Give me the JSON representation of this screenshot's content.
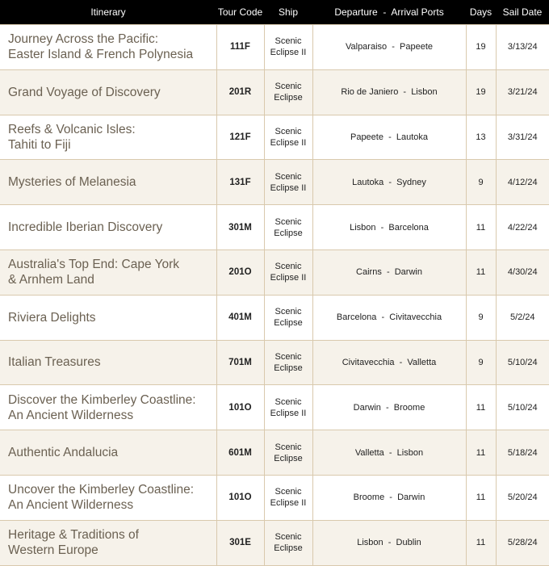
{
  "headers": [
    "Itinerary",
    "Tour Code",
    "Ship",
    "Departure  -  Arrival Ports",
    "Days",
    "Sail Date"
  ],
  "rows": [
    {
      "itinerary": [
        "Journey Across the Pacific:",
        "Easter Island & French Polynesia"
      ],
      "code": "111F",
      "ship": [
        "Scenic",
        "Eclipse II"
      ],
      "ports": "Valparaiso  -  Papeete",
      "days": "19",
      "date": "3/13/24"
    },
    {
      "itinerary": [
        "Grand Voyage of Discovery"
      ],
      "code": "201R",
      "ship": [
        "Scenic",
        "Eclipse"
      ],
      "ports": "Rio de Janiero  -  Lisbon",
      "days": "19",
      "date": "3/21/24"
    },
    {
      "itinerary": [
        "Reefs & Volcanic Isles:",
        "Tahiti to Fiji"
      ],
      "code": "121F",
      "ship": [
        "Scenic",
        "Eclipse II"
      ],
      "ports": "Papeete  -  Lautoka",
      "days": "13",
      "date": "3/31/24"
    },
    {
      "itinerary": [
        "Mysteries of Melanesia"
      ],
      "code": "131F",
      "ship": [
        "Scenic",
        "Eclipse II"
      ],
      "ports": "Lautoka  -  Sydney",
      "days": "9",
      "date": "4/12/24"
    },
    {
      "itinerary": [
        "Incredible Iberian Discovery"
      ],
      "code": "301M",
      "ship": [
        "Scenic",
        "Eclipse"
      ],
      "ports": "Lisbon  -  Barcelona",
      "days": "11",
      "date": "4/22/24"
    },
    {
      "itinerary": [
        "Australia's Top End: Cape York",
        "& Arnhem Land"
      ],
      "code": "201O",
      "ship": [
        "Scenic",
        "Eclipse II"
      ],
      "ports": "Cairns  -  Darwin",
      "days": "11",
      "date": "4/30/24"
    },
    {
      "itinerary": [
        "Riviera Delights"
      ],
      "code": "401M",
      "ship": [
        "Scenic",
        "Eclipse"
      ],
      "ports": "Barcelona  -  Civitavecchia",
      "days": "9",
      "date": "5/2/24"
    },
    {
      "itinerary": [
        "Italian Treasures"
      ],
      "code": "701M",
      "ship": [
        "Scenic",
        "Eclipse"
      ],
      "ports": "Civitavecchia  -  Valletta",
      "days": "9",
      "date": "5/10/24"
    },
    {
      "itinerary": [
        "Discover the Kimberley Coastline:",
        "An Ancient Wilderness"
      ],
      "code": "101O",
      "ship": [
        "Scenic",
        "Eclipse II"
      ],
      "ports": "Darwin  -  Broome",
      "days": "11",
      "date": "5/10/24"
    },
    {
      "itinerary": [
        "Authentic Andalucia"
      ],
      "code": "601M",
      "ship": [
        "Scenic",
        "Eclipse"
      ],
      "ports": "Valletta  -  Lisbon",
      "days": "11",
      "date": "5/18/24"
    },
    {
      "itinerary": [
        "Uncover the Kimberley Coastline:",
        "An Ancient Wilderness"
      ],
      "code": "101O",
      "ship": [
        "Scenic",
        "Eclipse II"
      ],
      "ports": "Broome  -  Darwin",
      "days": "11",
      "date": "5/20/24"
    },
    {
      "itinerary": [
        "Heritage & Traditions of",
        "Western Europe"
      ],
      "code": "301E",
      "ship": [
        "Scenic",
        "Eclipse"
      ],
      "ports": "Lisbon  -  Dublin",
      "days": "11",
      "date": "5/28/24"
    }
  ]
}
